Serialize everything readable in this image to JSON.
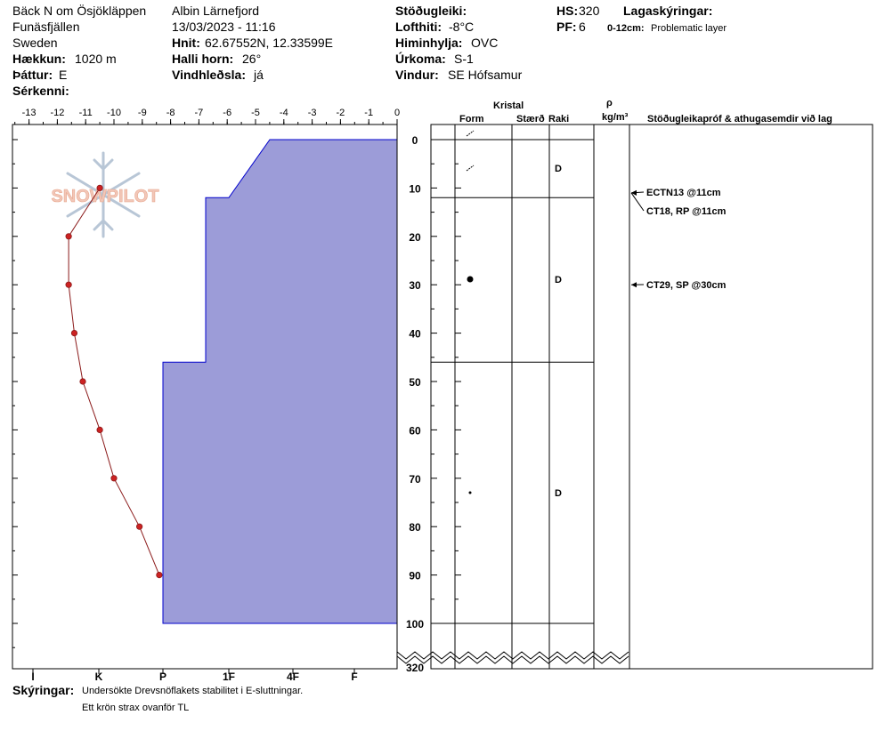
{
  "header": {
    "location": "Bäck N om Ösjökläppen",
    "range": "Funäsfjällen",
    "country": "Sweden",
    "elevation_label": "Hækkun:",
    "elevation_value": "1020 m",
    "aspect_label": "Þáttur:",
    "aspect_value": "E",
    "features_label": "Sérkenni:",
    "observer": "Albin Lärnefjord",
    "datetime": "13/03/2023 - 11:16",
    "coords_label": "Hnit:",
    "coords_value": "62.67552N, 12.33599E",
    "slope_label": "Halli horn:",
    "slope_value": "26°",
    "wind_loading_label": "Vindhleðsla:",
    "wind_loading_value": "já",
    "stability_label": "Stöðugleiki:",
    "stability_value": "",
    "air_temp_label": "Lofthiti:",
    "air_temp_value": "-8°C",
    "sky_label": "Himinhylja:",
    "sky_value": "OVC",
    "precip_label": "Úrkoma:",
    "precip_value": "S-1",
    "wind_label": "Vindur:",
    "wind_value": "SE Hófsamur",
    "hs_label": "HS:",
    "hs_value": "320",
    "pf_label": "PF:",
    "pf_value": "6",
    "layer_notes_label": "Lagaskýringar:",
    "layer_note_range": "0-12cm:",
    "layer_note_text": "Problematic layer"
  },
  "table_headers": {
    "crystal": "Kristal",
    "form": "Form",
    "size": "Stærð",
    "moisture": "Raki",
    "density_symbol": "ρ",
    "density_unit": "kg/m³",
    "tests": "Stöðugleikapróf & athugasemdir við lag"
  },
  "layers": [
    {
      "top": 0,
      "bottom": 12,
      "hardness": "4F-",
      "form_icon": "decomposing",
      "moisture": "D"
    },
    {
      "top": 12,
      "bottom": 46,
      "hardness": "1F-",
      "form_icon": "round",
      "moisture": "D"
    },
    {
      "top": 46,
      "bottom": 100,
      "hardness": "P",
      "form_icon": "small-dot",
      "moisture": "D"
    }
  ],
  "tests": [
    {
      "label": "ECTN13 @11cm",
      "depth": 11
    },
    {
      "label": "CT18, RP @11cm",
      "depth": 11
    },
    {
      "label": "CT29, SP @30cm",
      "depth": 30
    }
  ],
  "comments": {
    "label": "Skýringar:",
    "line1": "Undersökte Drevsnöflakets stabilitet i E-sluttningar.",
    "line2": "Ett krön strax ovanför TL"
  },
  "watermark": "SNOWPILOT",
  "chart_data": {
    "type": "line",
    "title": "",
    "temperature_axis": {
      "label": "",
      "ticks": [
        "-13",
        "-12",
        "-11",
        "-10",
        "-9",
        "-8",
        "-7",
        "-6",
        "-5",
        "-4",
        "-3",
        "-2",
        "-1",
        "0"
      ],
      "range": [
        -13.5,
        0
      ]
    },
    "hardness_axis": {
      "ticks": [
        "I",
        "K",
        "P",
        "1F",
        "4F",
        "F"
      ]
    },
    "depth_axis": {
      "ticks": [
        "0",
        "10",
        "20",
        "30",
        "40",
        "50",
        "60",
        "70",
        "80",
        "90",
        "100"
      ],
      "range": [
        0,
        100
      ],
      "bottom_label": "320"
    },
    "temperature_profile": {
      "depth": [
        10,
        20,
        30,
        40,
        50,
        60,
        70,
        80,
        90
      ],
      "temp": [
        -10.5,
        -11.6,
        -11.6,
        -11.4,
        -11.1,
        -10.5,
        -10.0,
        -9.1,
        -8.4
      ]
    },
    "hardness_profile": [
      {
        "top": 0,
        "bottom": 12,
        "hardness": "4F-"
      },
      {
        "top": 12,
        "bottom": 46,
        "hardness": "1F-"
      },
      {
        "top": 46,
        "bottom": 100,
        "hardness": "P"
      }
    ],
    "colors": {
      "hardness_fill": "#9c9cd8",
      "hardness_stroke": "#0000cc",
      "temp_line": "#8b1a1a",
      "temp_point": "#cc2222"
    }
  }
}
